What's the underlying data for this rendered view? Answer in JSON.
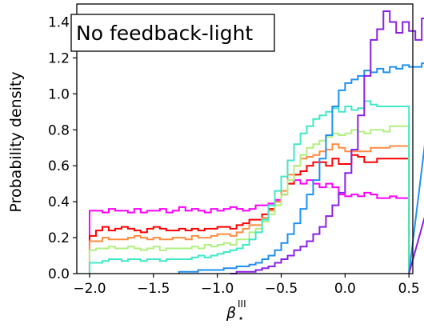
{
  "chart_data": {
    "type": "line",
    "step": true,
    "annotation": "No feedback-light",
    "xlabel": "β",
    "xlabel_sup": "III",
    "xlabel_sub": "⋆",
    "ylabel": "Probability density",
    "xlim": [
      -2.1,
      0.53
    ],
    "ylim": [
      0.0,
      1.5
    ],
    "xticks": [
      -2.0,
      -1.5,
      -1.0,
      -0.5,
      0.0,
      0.5
    ],
    "xtick_labels": [
      "−2.0",
      "−1.5",
      "−1.0",
      "−0.5",
      "0.0",
      "0.5"
    ],
    "yticks": [
      0.0,
      0.2,
      0.4,
      0.6,
      0.8,
      1.0,
      1.2,
      1.4
    ],
    "ytick_labels": [
      "0.0",
      "0.2",
      "0.4",
      "0.6",
      "0.8",
      "1.0",
      "1.2",
      "1.4"
    ],
    "grid": false,
    "legend": "none",
    "bin_width": 0.05,
    "x_max": 0.5,
    "series": [
      {
        "color": "#ff00ff",
        "x_start": -2.0,
        "values": [
          0.35,
          0.35,
          0.34,
          0.36,
          0.35,
          0.35,
          0.34,
          0.36,
          0.34,
          0.35,
          0.35,
          0.36,
          0.34,
          0.35,
          0.37,
          0.35,
          0.36,
          0.35,
          0.34,
          0.36,
          0.35,
          0.36,
          0.37,
          0.36,
          0.35,
          0.36,
          0.38,
          0.38,
          0.39,
          0.41,
          0.44,
          0.5,
          0.52,
          0.5,
          0.52,
          0.5,
          0.48,
          0.5,
          0.48,
          0.44,
          0.43,
          0.44,
          0.43,
          0.45,
          0.44,
          0.42,
          0.42,
          0.43,
          0.42,
          0.42
        ]
      },
      {
        "color": "#ff0000",
        "x_start": -2.0,
        "values": [
          0.21,
          0.24,
          0.26,
          0.24,
          0.25,
          0.26,
          0.25,
          0.24,
          0.23,
          0.25,
          0.26,
          0.25,
          0.24,
          0.24,
          0.25,
          0.24,
          0.25,
          0.24,
          0.25,
          0.25,
          0.26,
          0.26,
          0.25,
          0.27,
          0.28,
          0.3,
          0.3,
          0.33,
          0.36,
          0.4,
          0.44,
          0.5,
          0.55,
          0.57,
          0.6,
          0.62,
          0.62,
          0.6,
          0.64,
          0.61,
          0.61,
          0.66,
          0.65,
          0.62,
          0.62,
          0.64,
          0.64,
          0.64,
          0.64,
          0.64
        ]
      },
      {
        "color": "#ff8c40",
        "x_start": -2.0,
        "values": [
          0.18,
          0.18,
          0.2,
          0.19,
          0.19,
          0.19,
          0.2,
          0.21,
          0.2,
          0.19,
          0.2,
          0.19,
          0.19,
          0.2,
          0.2,
          0.19,
          0.21,
          0.2,
          0.2,
          0.21,
          0.22,
          0.22,
          0.21,
          0.23,
          0.25,
          0.27,
          0.27,
          0.31,
          0.35,
          0.4,
          0.46,
          0.55,
          0.6,
          0.64,
          0.65,
          0.66,
          0.68,
          0.69,
          0.72,
          0.7,
          0.68,
          0.68,
          0.68,
          0.68,
          0.7,
          0.7,
          0.7,
          0.71,
          0.71,
          0.71
        ]
      },
      {
        "color": "#b0f080",
        "x_start": -2.0,
        "values": [
          0.13,
          0.14,
          0.14,
          0.15,
          0.14,
          0.14,
          0.15,
          0.14,
          0.13,
          0.14,
          0.15,
          0.13,
          0.14,
          0.14,
          0.14,
          0.14,
          0.15,
          0.14,
          0.16,
          0.15,
          0.16,
          0.17,
          0.16,
          0.19,
          0.19,
          0.23,
          0.25,
          0.29,
          0.33,
          0.38,
          0.44,
          0.52,
          0.6,
          0.66,
          0.7,
          0.72,
          0.74,
          0.76,
          0.78,
          0.77,
          0.78,
          0.8,
          0.79,
          0.78,
          0.8,
          0.8,
          0.79,
          0.82,
          0.82,
          0.82
        ]
      },
      {
        "color": "#40e8c8",
        "x_start": -2.0,
        "values": [
          0.06,
          0.06,
          0.07,
          0.08,
          0.08,
          0.07,
          0.08,
          0.08,
          0.07,
          0.08,
          0.08,
          0.07,
          0.08,
          0.08,
          0.08,
          0.08,
          0.09,
          0.1,
          0.09,
          0.1,
          0.11,
          0.12,
          0.13,
          0.14,
          0.16,
          0.19,
          0.23,
          0.3,
          0.38,
          0.46,
          0.54,
          0.63,
          0.72,
          0.78,
          0.82,
          0.86,
          0.88,
          0.9,
          0.92,
          0.9,
          0.93,
          0.91,
          0.92,
          0.96,
          0.94,
          0.93,
          0.93,
          0.93,
          0.93,
          0.93
        ]
      },
      {
        "color": "#2090f0",
        "x_start": -1.3,
        "values": [
          0.01,
          0.01,
          0.01,
          0.02,
          0.02,
          0.02,
          0.02,
          0.03,
          0.03,
          0.04,
          0.04,
          0.05,
          0.06,
          0.08,
          0.1,
          0.13,
          0.17,
          0.22,
          0.28,
          0.36,
          0.44,
          0.52,
          0.64,
          0.77,
          0.93,
          1.02,
          1.06,
          1.08,
          1.1,
          1.13,
          1.12,
          1.14,
          1.12,
          1.15,
          1.14,
          1.16,
          1.15,
          1.15,
          1.17,
          1.16
        ]
      },
      {
        "color": "#8a20e8",
        "x_start": -0.9,
        "values": [
          0.0,
          0.01,
          0.01,
          0.01,
          0.02,
          0.03,
          0.04,
          0.06,
          0.08,
          0.1,
          0.13,
          0.15,
          0.18,
          0.22,
          0.26,
          0.32,
          0.38,
          0.45,
          0.56,
          0.69,
          0.88,
          1.1,
          1.3,
          1.36,
          1.46,
          1.4,
          1.34,
          1.4,
          1.35,
          1.3,
          1.42,
          1.29,
          1.28,
          1.3,
          1.29,
          1.28,
          1.3,
          1.28
        ]
      }
    ]
  }
}
